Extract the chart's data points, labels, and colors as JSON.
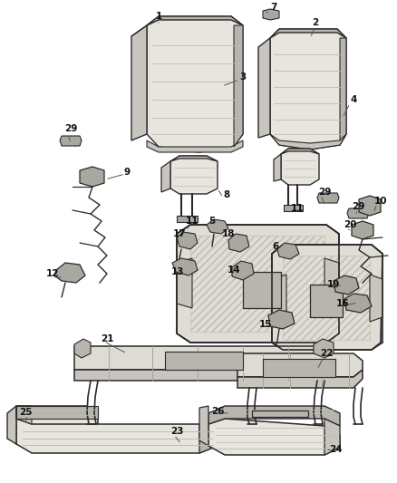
{
  "bg": "#ffffff",
  "lc": "#2a2a2a",
  "fc_seat": "#e8e4de",
  "fc_frame": "#dedad4",
  "fc_dark": "#c8c4be",
  "fc_metal": "#b8b4ae",
  "fc_small": "#a8a8a0",
  "stripe": "#c0bbb4",
  "hatch_color": "#c8c4be",
  "label_fs": 7.5,
  "title_fs": 6.5
}
